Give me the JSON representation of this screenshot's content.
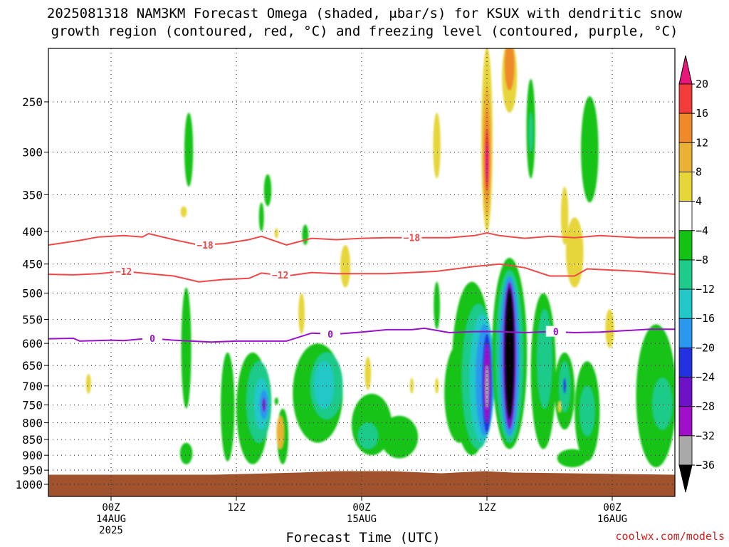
{
  "header": {
    "title_line1": "2025081318 NAM3KM Forecast Omega (shaded, μbar/s) for KSUX with dendritic snow",
    "title_line2": "growth region (contoured, red, °C) and freezing level (contoured, purple, °C)"
  },
  "footer": {
    "xlabel": "Forecast Time (UTC)",
    "credit": "coolwx.com/models"
  },
  "chart_data": {
    "type": "heatmap",
    "y_axis": {
      "label": "",
      "ticks": [
        250,
        300,
        350,
        400,
        450,
        500,
        550,
        600,
        650,
        700,
        750,
        800,
        850,
        900,
        950,
        1000
      ],
      "range_hpa": [
        200,
        1010
      ],
      "scale": "log-pressure"
    },
    "x_axis": {
      "label": "Forecast Time (UTC)",
      "range_hours": [
        -5,
        45
      ],
      "ticks": [
        {
          "hour": 0,
          "lines": [
            "00Z",
            "14AUG",
            "2025"
          ]
        },
        {
          "hour": 10,
          "lines": [
            "12Z"
          ]
        },
        {
          "hour": 20,
          "lines": [
            "00Z",
            "15AUG"
          ]
        },
        {
          "hour": 30,
          "lines": [
            "12Z"
          ]
        },
        {
          "hour": 40,
          "lines": [
            "00Z",
            "16AUG"
          ]
        }
      ]
    },
    "colorbar": {
      "labels": [
        "20",
        "16",
        "12",
        "8",
        "4",
        "−4",
        "−8",
        "−12",
        "−16",
        "−20",
        "−24",
        "−28",
        "−32",
        "−36"
      ],
      "bins": [
        {
          "lo": 20,
          "hi": 24,
          "color": "#e8157a"
        },
        {
          "lo": 16,
          "hi": 20,
          "color": "#f23b3b"
        },
        {
          "lo": 12,
          "hi": 16,
          "color": "#ef8a2a"
        },
        {
          "lo": 8,
          "hi": 12,
          "color": "#e9b236"
        },
        {
          "lo": 4,
          "hi": 8,
          "color": "#e6d63a"
        },
        {
          "lo": -4,
          "hi": 4,
          "color": "#ffffff"
        },
        {
          "lo": -8,
          "hi": -4,
          "color": "#13c313"
        },
        {
          "lo": -12,
          "hi": -8,
          "color": "#1fcb8a"
        },
        {
          "lo": -16,
          "hi": -12,
          "color": "#22c7c7"
        },
        {
          "lo": -20,
          "hi": -16,
          "color": "#2a98ef"
        },
        {
          "lo": -24,
          "hi": -20,
          "color": "#2232e0"
        },
        {
          "lo": -28,
          "hi": -24,
          "color": "#6e12c8"
        },
        {
          "lo": -32,
          "hi": -28,
          "color": "#a010c8"
        },
        {
          "lo": -36,
          "hi": -32,
          "color": "#a9a9a9"
        },
        {
          "lo": -40,
          "hi": -36,
          "color": "#000000"
        }
      ]
    },
    "surface_color": "#a0522d",
    "contours": [
      {
        "name": "-18",
        "color": "#f04848",
        "points": [
          [
            -5,
            420
          ],
          [
            -2.5,
            413
          ],
          [
            -1,
            408
          ],
          [
            1,
            406
          ],
          [
            2.5,
            408
          ],
          [
            3,
            403
          ],
          [
            5,
            412
          ],
          [
            7,
            420
          ],
          [
            9,
            418
          ],
          [
            11,
            412
          ],
          [
            12,
            407
          ],
          [
            14,
            420
          ],
          [
            16,
            410
          ],
          [
            18,
            412
          ],
          [
            20,
            410
          ],
          [
            22,
            409
          ],
          [
            25,
            409
          ],
          [
            27,
            409
          ],
          [
            29,
            406
          ],
          [
            30,
            402
          ],
          [
            31,
            406
          ],
          [
            33,
            410
          ],
          [
            35,
            407
          ],
          [
            37,
            409
          ],
          [
            39,
            406
          ],
          [
            42,
            409
          ],
          [
            45,
            409
          ]
        ],
        "labels": [
          {
            "x": 7.5,
            "p": 420,
            "text": "−18"
          },
          {
            "x": 24,
            "p": 409,
            "text": "−18"
          }
        ]
      },
      {
        "name": "-12",
        "color": "#f04848",
        "points": [
          [
            -5,
            467
          ],
          [
            -3,
            468
          ],
          [
            -1,
            466
          ],
          [
            1,
            462
          ],
          [
            3,
            466
          ],
          [
            5,
            470
          ],
          [
            7,
            480
          ],
          [
            9,
            476
          ],
          [
            11,
            474
          ],
          [
            12,
            465
          ],
          [
            14,
            470
          ],
          [
            16,
            464
          ],
          [
            18,
            466
          ],
          [
            20,
            466
          ],
          [
            22,
            466
          ],
          [
            24,
            464
          ],
          [
            26,
            462
          ],
          [
            29,
            454
          ],
          [
            31,
            450
          ],
          [
            33,
            456
          ],
          [
            35,
            470
          ],
          [
            37,
            470
          ],
          [
            38,
            458
          ],
          [
            40,
            460
          ],
          [
            42,
            462
          ],
          [
            45,
            467
          ]
        ],
        "labels": [
          {
            "x": 1,
            "p": 462,
            "text": "−12"
          },
          {
            "x": 13.5,
            "p": 468,
            "text": "−12"
          }
        ]
      },
      {
        "name": "0",
        "color": "#9a10c8",
        "points": [
          [
            -5,
            590
          ],
          [
            -3,
            589
          ],
          [
            -2.5,
            595
          ],
          [
            0,
            593
          ],
          [
            1,
            594
          ],
          [
            3,
            589
          ],
          [
            5,
            593
          ],
          [
            8,
            597
          ],
          [
            10,
            595
          ],
          [
            12,
            595
          ],
          [
            14,
            595
          ],
          [
            16,
            578
          ],
          [
            18,
            580
          ],
          [
            20,
            576
          ],
          [
            22,
            571
          ],
          [
            24,
            571
          ],
          [
            25,
            568
          ],
          [
            27,
            577
          ],
          [
            29,
            575
          ],
          [
            31,
            575
          ],
          [
            33,
            577
          ],
          [
            35,
            575
          ],
          [
            37,
            577
          ],
          [
            39,
            576
          ],
          [
            41,
            573
          ],
          [
            43,
            570
          ],
          [
            45,
            570
          ]
        ],
        "labels": [
          {
            "x": 3.3,
            "p": 589,
            "text": "0"
          },
          {
            "x": 17.5,
            "p": 580,
            "text": "0"
          },
          {
            "x": 35.5,
            "p": 575,
            "text": "0"
          }
        ]
      }
    ],
    "features": [
      {
        "t": 6.2,
        "p1": 260,
        "p2": 340,
        "w": 0.35,
        "v": -6
      },
      {
        "t": 5.8,
        "p1": 365,
        "p2": 380,
        "w": 0.25,
        "v": 6
      },
      {
        "t": 12.5,
        "p1": 325,
        "p2": 365,
        "w": 0.3,
        "v": -6
      },
      {
        "t": 12.0,
        "p1": 360,
        "p2": 400,
        "w": 0.2,
        "v": -6
      },
      {
        "t": 15.5,
        "p1": 390,
        "p2": 420,
        "w": 0.25,
        "v": -6
      },
      {
        "t": 13.2,
        "p1": 395,
        "p2": 410,
        "w": 0.15,
        "v": 6
      },
      {
        "t": 6.0,
        "p1": 490,
        "p2": 760,
        "w": 0.4,
        "v": -6
      },
      {
        "t": 6.0,
        "p1": 860,
        "p2": 930,
        "w": 0.5,
        "v": -6
      },
      {
        "t": -1.8,
        "p1": 670,
        "p2": 720,
        "w": 0.2,
        "v": 6
      },
      {
        "t": 9.3,
        "p1": 620,
        "p2": 920,
        "w": 0.55,
        "v": -6
      },
      {
        "t": 11.3,
        "p1": 620,
        "p2": 930,
        "w": 1.3,
        "v": -6
      },
      {
        "t": 11.8,
        "p1": 640,
        "p2": 860,
        "w": 1.0,
        "v": -10
      },
      {
        "t": 12.0,
        "p1": 680,
        "p2": 820,
        "w": 0.6,
        "v": -14
      },
      {
        "t": 12.2,
        "p1": 710,
        "p2": 790,
        "w": 0.35,
        "v": -18
      },
      {
        "t": 12.2,
        "p1": 730,
        "p2": 770,
        "w": 0.15,
        "v": -26
      },
      {
        "t": 13.7,
        "p1": 760,
        "p2": 930,
        "w": 0.45,
        "v": -6
      },
      {
        "t": 13.5,
        "p1": 780,
        "p2": 880,
        "w": 0.3,
        "v": 10
      },
      {
        "t": 13.2,
        "p1": 730,
        "p2": 750,
        "w": 0.15,
        "v": -6
      },
      {
        "t": 16.5,
        "p1": 600,
        "p2": 860,
        "w": 2.0,
        "v": -6
      },
      {
        "t": 17.2,
        "p1": 620,
        "p2": 790,
        "w": 1.3,
        "v": -10
      },
      {
        "t": 17.0,
        "p1": 640,
        "p2": 760,
        "w": 0.8,
        "v": -14
      },
      {
        "t": 15.2,
        "p1": 500,
        "p2": 580,
        "w": 0.25,
        "v": 6
      },
      {
        "t": 20.8,
        "p1": 720,
        "p2": 900,
        "w": 1.6,
        "v": -6
      },
      {
        "t": 20.5,
        "p1": 800,
        "p2": 880,
        "w": 0.8,
        "v": -10
      },
      {
        "t": 23.0,
        "p1": 780,
        "p2": 910,
        "w": 1.5,
        "v": -6
      },
      {
        "t": 18.7,
        "p1": 420,
        "p2": 490,
        "w": 0.4,
        "v": 6
      },
      {
        "t": 20.5,
        "p1": 630,
        "p2": 710,
        "w": 0.25,
        "v": 6
      },
      {
        "t": 24.0,
        "p1": 680,
        "p2": 720,
        "w": 0.15,
        "v": 6
      },
      {
        "t": 26.0,
        "p1": 680,
        "p2": 720,
        "w": 0.15,
        "v": 6
      },
      {
        "t": 26.0,
        "p1": 480,
        "p2": 570,
        "w": 0.25,
        "v": -6
      },
      {
        "t": 26.0,
        "p1": 260,
        "p2": 330,
        "w": 0.3,
        "v": 6
      },
      {
        "t": 27.8,
        "p1": 600,
        "p2": 860,
        "w": 1.2,
        "v": -6
      },
      {
        "t": 28.8,
        "p1": 480,
        "p2": 900,
        "w": 1.6,
        "v": -6
      },
      {
        "t": 29.3,
        "p1": 520,
        "p2": 880,
        "w": 1.3,
        "v": -10
      },
      {
        "t": 29.6,
        "p1": 540,
        "p2": 860,
        "w": 1.0,
        "v": -14
      },
      {
        "t": 29.8,
        "p1": 560,
        "p2": 840,
        "w": 0.7,
        "v": -18
      },
      {
        "t": 30.0,
        "p1": 580,
        "p2": 830,
        "w": 0.4,
        "v": -22
      },
      {
        "t": 30.0,
        "p1": 600,
        "p2": 800,
        "w": 0.25,
        "v": -30
      },
      {
        "t": 30.0,
        "p1": 650,
        "p2": 760,
        "w": 0.1,
        "v": -34
      },
      {
        "t": 30.0,
        "p1": 205,
        "p2": 400,
        "w": 0.45,
        "v": 6
      },
      {
        "t": 30.0,
        "p1": 235,
        "p2": 380,
        "w": 0.35,
        "v": 10
      },
      {
        "t": 30.0,
        "p1": 255,
        "p2": 360,
        "w": 0.25,
        "v": 14
      },
      {
        "t": 30.0,
        "p1": 275,
        "p2": 345,
        "w": 0.18,
        "v": 18
      },
      {
        "t": 30.0,
        "p1": 290,
        "p2": 335,
        "w": 0.1,
        "v": 22
      },
      {
        "t": 31.8,
        "p1": 200,
        "p2": 260,
        "w": 0.6,
        "v": 6
      },
      {
        "t": 31.8,
        "p1": 200,
        "p2": 240,
        "w": 0.4,
        "v": 12
      },
      {
        "t": 33.5,
        "p1": 230,
        "p2": 330,
        "w": 0.35,
        "v": -6
      },
      {
        "t": 33.5,
        "p1": 260,
        "p2": 300,
        "w": 0.15,
        "v": -10
      },
      {
        "t": 31.8,
        "p1": 440,
        "p2": 880,
        "w": 1.4,
        "v": -6
      },
      {
        "t": 31.8,
        "p1": 460,
        "p2": 860,
        "w": 1.1,
        "v": -12
      },
      {
        "t": 31.8,
        "p1": 470,
        "p2": 840,
        "w": 0.8,
        "v": -20
      },
      {
        "t": 31.8,
        "p1": 480,
        "p2": 820,
        "w": 0.55,
        "v": -28
      },
      {
        "t": 31.8,
        "p1": 490,
        "p2": 790,
        "w": 0.4,
        "v": -38
      },
      {
        "t": 34.5,
        "p1": 500,
        "p2": 880,
        "w": 1.0,
        "v": -6
      },
      {
        "t": 34.6,
        "p1": 530,
        "p2": 760,
        "w": 0.6,
        "v": -10
      },
      {
        "t": 36.2,
        "p1": 620,
        "p2": 820,
        "w": 0.8,
        "v": -6
      },
      {
        "t": 36.2,
        "p1": 640,
        "p2": 770,
        "w": 0.45,
        "v": -10
      },
      {
        "t": 36.2,
        "p1": 680,
        "p2": 720,
        "w": 0.12,
        "v": -22
      },
      {
        "t": 38.0,
        "p1": 640,
        "p2": 920,
        "w": 1.0,
        "v": -6
      },
      {
        "t": 38.0,
        "p1": 700,
        "p2": 840,
        "w": 0.6,
        "v": -10
      },
      {
        "t": 36.8,
        "p1": 880,
        "p2": 940,
        "w": 1.2,
        "v": -6
      },
      {
        "t": 37.0,
        "p1": 380,
        "p2": 490,
        "w": 0.7,
        "v": 6
      },
      {
        "t": 36.2,
        "p1": 340,
        "p2": 420,
        "w": 0.3,
        "v": 6
      },
      {
        "t": 38.2,
        "p1": 245,
        "p2": 360,
        "w": 0.7,
        "v": -6
      },
      {
        "t": 39.8,
        "p1": 530,
        "p2": 610,
        "w": 0.35,
        "v": 6
      },
      {
        "t": 35.8,
        "p1": 740,
        "p2": 770,
        "w": 0.12,
        "v": 6
      },
      {
        "t": 43.5,
        "p1": 560,
        "p2": 940,
        "w": 1.6,
        "v": -6
      },
      {
        "t": 44.0,
        "p1": 680,
        "p2": 820,
        "w": 0.8,
        "v": -10
      }
    ]
  }
}
